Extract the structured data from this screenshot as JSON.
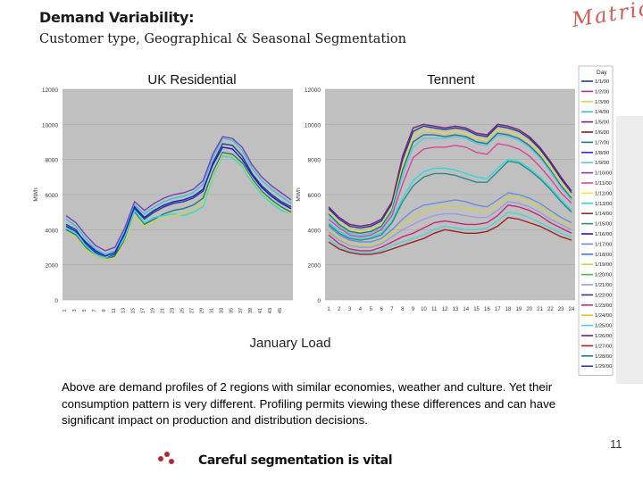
{
  "header": {
    "title": "Demand Variability:",
    "subtitle": "Customer type, Geographical & Seasonal Segmentation",
    "logo_text": "Matrica"
  },
  "colors": {
    "logo": "#d45b55",
    "plot_bg": "#c0c0c0",
    "footer_dots": "#b8262f"
  },
  "chart_data": [
    {
      "type": "line",
      "title": "UK Residential",
      "ylabel": "MWh",
      "ylim": [
        0,
        12000
      ],
      "yticks": [
        0,
        2000,
        4000,
        6000,
        8000,
        10000,
        12000
      ],
      "x": [
        1,
        3,
        5,
        7,
        9,
        11,
        13,
        15,
        17,
        19,
        21,
        23,
        25,
        27,
        29,
        31,
        33,
        35,
        37,
        39,
        41,
        43,
        45,
        47
      ],
      "xtick_labels": [
        "1",
        "3",
        "5",
        "7",
        "9",
        "11",
        "13",
        "15",
        "17",
        "19",
        "21",
        "23",
        "25",
        "27",
        "29",
        "31",
        "33",
        "35",
        "37",
        "39",
        "41",
        "43",
        "45"
      ],
      "series": [
        {
          "values": [
            4300,
            4000,
            3200,
            2700,
            2400,
            2600,
            3700,
            5200,
            4600,
            5000,
            5300,
            5500,
            5600,
            5800,
            6200,
            7800,
            8900,
            8800,
            8200,
            7200,
            6500,
            6000,
            5600,
            5300
          ]
        },
        {
          "values": [
            4600,
            4200,
            3500,
            2900,
            2600,
            2800,
            3900,
            5400,
            4900,
            5300,
            5600,
            5800,
            5900,
            6100,
            6600,
            8100,
            9200,
            9100,
            8500,
            7500,
            6800,
            6300,
            5900,
            5500
          ]
        },
        {
          "values": [
            4000,
            3700,
            3000,
            2500,
            2300,
            2500,
            3400,
            5000,
            4300,
            4600,
            4900,
            5100,
            5200,
            5400,
            5800,
            7300,
            8400,
            8300,
            7800,
            6900,
            6200,
            5700,
            5300,
            5000
          ]
        },
        {
          "values": [
            4800,
            4400,
            3700,
            3100,
            2800,
            3000,
            4100,
            5600,
            5100,
            5500,
            5800,
            6000,
            6100,
            6300,
            6800,
            8300,
            9300,
            9200,
            8700,
            7700,
            7000,
            6500,
            6100,
            5700
          ]
        },
        {
          "values": [
            4100,
            3800,
            3100,
            2600,
            2400,
            2700,
            3600,
            5100,
            4400,
            4700,
            4800,
            4900,
            4800,
            5000,
            5300,
            7000,
            8200,
            8100,
            7600,
            6700,
            6000,
            5500,
            5100,
            4900
          ]
        },
        {
          "values": [
            4200,
            3900,
            3300,
            2800,
            2500,
            2700,
            3800,
            5300,
            4700,
            5100,
            5400,
            5600,
            5700,
            5900,
            6300,
            7700,
            8700,
            8600,
            8000,
            7100,
            6400,
            5900,
            5500,
            5200
          ]
        },
        {
          "values": [
            3900,
            3600,
            2900,
            2500,
            2300,
            2400,
            3300,
            4900,
            4200,
            4500,
            4700,
            4800,
            4900,
            5100,
            5500,
            7100,
            8300,
            8200,
            7700,
            6800,
            6100,
            5600,
            5200,
            4900
          ]
        }
      ]
    },
    {
      "type": "line",
      "title": "Tennent",
      "ylabel": "MWh",
      "ylim": [
        0,
        12000
      ],
      "yticks": [
        0,
        2000,
        4000,
        6000,
        8000,
        10000,
        12000
      ],
      "x": [
        1,
        2,
        3,
        4,
        5,
        6,
        7,
        8,
        9,
        10,
        11,
        12,
        13,
        14,
        15,
        16,
        17,
        18,
        19,
        20,
        21,
        22,
        23,
        24
      ],
      "xtick_labels": [
        "1",
        "2",
        "3",
        "4",
        "5",
        "6",
        "7",
        "8",
        "9",
        "10",
        "11",
        "12",
        "13",
        "14",
        "15",
        "16",
        "17",
        "18",
        "19",
        "20",
        "21",
        "22",
        "23",
        "24"
      ],
      "series": [
        {
          "values": [
            5200,
            4600,
            4200,
            4100,
            4200,
            4500,
            5500,
            8000,
            9600,
            9900,
            9800,
            9700,
            9800,
            9700,
            9400,
            9300,
            9900,
            9800,
            9600,
            9200,
            8600,
            7800,
            6900,
            6100
          ]
        },
        {
          "values": [
            5000,
            4400,
            4000,
            3900,
            4000,
            4300,
            5300,
            7700,
            9300,
            9700,
            9600,
            9500,
            9600,
            9500,
            9200,
            9100,
            9700,
            9600,
            9400,
            9000,
            8400,
            7600,
            6700,
            5900
          ]
        },
        {
          "values": [
            5300,
            4700,
            4300,
            4200,
            4300,
            4600,
            5600,
            8200,
            9800,
            10000,
            9900,
            9800,
            9900,
            9800,
            9500,
            9400,
            10000,
            9900,
            9700,
            9300,
            8700,
            7900,
            7000,
            6200
          ]
        },
        {
          "values": [
            4900,
            4300,
            3900,
            3800,
            3900,
            4200,
            5100,
            7400,
            9000,
            9400,
            9400,
            9300,
            9400,
            9300,
            9000,
            8900,
            9500,
            9400,
            9200,
            8800,
            8200,
            7400,
            6500,
            5800
          ]
        },
        {
          "values": [
            4800,
            4200,
            3800,
            3700,
            3800,
            4100,
            5000,
            7100,
            8700,
            9200,
            9200,
            9200,
            9300,
            9200,
            8900,
            8800,
            9400,
            9300,
            9100,
            8700,
            8100,
            7300,
            6400,
            5700
          ]
        },
        {
          "values": [
            4600,
            4100,
            3700,
            3600,
            3700,
            4000,
            4800,
            6600,
            8100,
            8600,
            8700,
            8700,
            8800,
            8700,
            8400,
            8300,
            8900,
            8800,
            8600,
            8200,
            7600,
            6900,
            6100,
            5500
          ]
        },
        {
          "values": [
            4400,
            3900,
            3600,
            3500,
            3600,
            3800,
            4500,
            5800,
            6800,
            7300,
            7500,
            7500,
            7400,
            7200,
            7000,
            6900,
            7500,
            8000,
            7900,
            7500,
            7000,
            6400,
            5700,
            5100
          ]
        },
        {
          "values": [
            4300,
            3800,
            3500,
            3400,
            3500,
            3700,
            4400,
            5600,
            6500,
            7000,
            7200,
            7200,
            7100,
            6900,
            6700,
            6700,
            7300,
            7900,
            7800,
            7400,
            6900,
            6300,
            5600,
            5000
          ]
        },
        {
          "values": [
            4200,
            3700,
            3400,
            3300,
            3300,
            3500,
            4000,
            4600,
            5100,
            5400,
            5500,
            5600,
            5700,
            5600,
            5400,
            5300,
            5700,
            6100,
            6000,
            5800,
            5500,
            5100,
            4700,
            4400
          ]
        },
        {
          "values": [
            4000,
            3500,
            3200,
            3100,
            3100,
            3300,
            3800,
            4300,
            4700,
            5000,
            5200,
            5300,
            5300,
            5200,
            5100,
            5000,
            5400,
            5900,
            5800,
            5600,
            5300,
            4900,
            4500,
            4200
          ]
        },
        {
          "values": [
            3900,
            3400,
            3100,
            3000,
            3000,
            3200,
            3600,
            4000,
            4300,
            4600,
            4800,
            4900,
            4900,
            4800,
            4700,
            4700,
            5100,
            5600,
            5500,
            5300,
            5000,
            4600,
            4300,
            4000
          ]
        },
        {
          "values": [
            3700,
            3200,
            2900,
            2800,
            2800,
            3000,
            3300,
            3600,
            3800,
            4100,
            4400,
            4500,
            4400,
            4300,
            4300,
            4400,
            4800,
            5400,
            5300,
            5100,
            4800,
            4400,
            4100,
            3800
          ]
        },
        {
          "values": [
            3500,
            3000,
            2800,
            2700,
            2700,
            2800,
            3100,
            3300,
            3500,
            3700,
            4000,
            4200,
            4100,
            4000,
            4000,
            4100,
            4500,
            5000,
            4900,
            4700,
            4400,
            4100,
            3800,
            3600
          ]
        },
        {
          "values": [
            3300,
            2900,
            2700,
            2600,
            2600,
            2700,
            2900,
            3100,
            3300,
            3500,
            3800,
            4000,
            3900,
            3800,
            3800,
            3900,
            4200,
            4700,
            4600,
            4400,
            4200,
            3900,
            3600,
            3400
          ]
        }
      ]
    }
  ],
  "legend": {
    "header": "Day",
    "entries": [
      "1/1/00",
      "1/2/00",
      "1/3/00",
      "1/4/00",
      "1/5/00",
      "1/6/00",
      "1/7/00",
      "1/8/00",
      "1/9/00",
      "1/10/00",
      "1/11/00",
      "1/12/00",
      "1/13/00",
      "1/14/00",
      "1/15/00",
      "1/16/00",
      "1/17/00",
      "1/18/00",
      "1/19/00",
      "1/20/00",
      "1/21/00",
      "1/22/00",
      "1/23/00",
      "1/24/00",
      "1/25/00",
      "1/26/00",
      "1/27/00",
      "1/28/00",
      "1/29/00"
    ]
  },
  "series_colors": [
    "#1f3e8c",
    "#b5338a",
    "#e3d54a",
    "#3ac4d4",
    "#7a1f7a",
    "#8b1a1a",
    "#1f7a7a",
    "#2a2ad8",
    "#5cc4e8",
    "#7b3fb5",
    "#d8459a",
    "#e8e840",
    "#2fd8e0",
    "#8e2a2a",
    "#2b8a8a",
    "#1a1ac4",
    "#6a8fd0",
    "#3a7ad8",
    "#d0d050",
    "#48b848",
    "#9a9ae0",
    "#2a3a9a",
    "#c02a7a",
    "#e0c030",
    "#50d0d0",
    "#70207a",
    "#a02020",
    "#208070",
    "#2040c0"
  ],
  "xlabel": "January Load",
  "caption": "Above are demand profiles of 2 regions with similar economies, weather and culture. Yet their consumption pattern is very different. Profiling permits viewing these differences and can have significant impact on production and distribution decisions.",
  "page_number": "11",
  "footer": "Careful segmentation is vital"
}
